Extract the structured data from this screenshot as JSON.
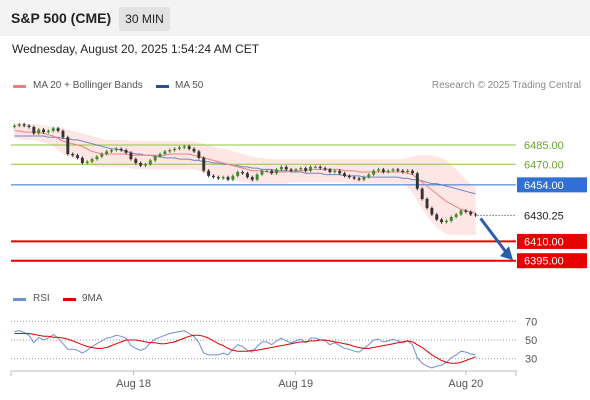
{
  "header": {
    "title": "S&P 500 (CME)",
    "timeframe": "30 MIN"
  },
  "timestamp": "Wednesday, August 20, 2025 1:54:24 AM CET",
  "legend": {
    "ma20": "MA 20 + Bollinger Bands",
    "ma50": "MA 50",
    "rsi": "RSI",
    "rsi_ma": "9MA"
  },
  "credit": "Research © 2025 Trading Central",
  "colors": {
    "resistance": "#8cc63f",
    "pivot": "#2f6fd6",
    "support": "#e60000",
    "bollinger_fill": "#fde3e1",
    "ma20": "#f08080",
    "ma50": "#4a6fb5",
    "candle_up": "#3d8a2e",
    "candle_down": "#333333",
    "arrow": "#2a5ea6",
    "rsi_line": "#6f8fd6",
    "rsi_ma": "#e00000"
  },
  "chart_data": [
    {
      "type": "candlestick",
      "x_ticks": [
        "Aug 18",
        "Aug 19",
        "Aug 20"
      ],
      "ylim": [
        6380,
        6520
      ],
      "levels": [
        {
          "label": "6485.00",
          "value": 6485,
          "kind": "resistance"
        },
        {
          "label": "6470.00",
          "value": 6470,
          "kind": "resistance"
        },
        {
          "label": "6454.00",
          "value": 6454,
          "kind": "pivot"
        },
        {
          "label": "6410.00",
          "value": 6410,
          "kind": "support"
        },
        {
          "label": "6395.00",
          "value": 6395,
          "kind": "support"
        }
      ],
      "last_price": {
        "label": "6430.25",
        "value": 6430.25
      },
      "close": [
        6500,
        6501,
        6500,
        6499,
        6494,
        6497,
        6495,
        6496,
        6498,
        6496,
        6491,
        6478,
        6477,
        6475,
        6471,
        6472,
        6474,
        6476,
        6478,
        6480,
        6481,
        6482,
        6481,
        6479,
        6474,
        6471,
        6469,
        6470,
        6473,
        6476,
        6478,
        6480,
        6481,
        6482,
        6483,
        6484,
        6482,
        6480,
        6475,
        6465,
        6461,
        6460,
        6459,
        6460,
        6458,
        6461,
        6464,
        6463,
        6460,
        6458,
        6462,
        6465,
        6465,
        6463,
        6466,
        6468,
        6466,
        6465,
        6466,
        6467,
        6465,
        6468,
        6468,
        6467,
        6466,
        6464,
        6465,
        6463,
        6461,
        6460,
        6459,
        6458,
        6460,
        6462,
        6465,
        6466,
        6464,
        6465,
        6466,
        6465,
        6464,
        6465,
        6463,
        6451,
        6443,
        6436,
        6431,
        6427,
        6425,
        6426,
        6429,
        6431,
        6434,
        6433,
        6431,
        6430.25
      ],
      "ma20": [
        6496,
        6496,
        6495,
        6495,
        6495,
        6495,
        6494,
        6493,
        6492,
        6490,
        6488,
        6487,
        6486,
        6485,
        6484,
        6482,
        6480,
        6479,
        6478,
        6478,
        6478,
        6478,
        6478,
        6478,
        6477,
        6477,
        6477,
        6477,
        6477,
        6477,
        6477,
        6477,
        6478,
        6478,
        6478,
        6478,
        6478,
        6477,
        6476,
        6475,
        6474,
        6473,
        6472,
        6471,
        6470,
        6469,
        6468,
        6467,
        6466,
        6465,
        6465,
        6465,
        6464,
        6464,
        6464,
        6464,
        6464,
        6465,
        6465,
        6465,
        6465,
        6466,
        6466,
        6466,
        6466,
        6466,
        6466,
        6466,
        6465,
        6465,
        6465,
        6464,
        6464,
        6464,
        6464,
        6464,
        6464,
        6464,
        6464,
        6464,
        6464,
        6463,
        6462,
        6459,
        6456,
        6453,
        6450,
        6447,
        6444,
        6441,
        6439,
        6437,
        6435,
        6434,
        6433,
        6432
      ],
      "bb_upper": [
        6502,
        6502,
        6502,
        6501,
        6501,
        6501,
        6500,
        6500,
        6499,
        6499,
        6498,
        6497,
        6496,
        6495,
        6494,
        6493,
        6492,
        6491,
        6490,
        6489,
        6489,
        6489,
        6489,
        6489,
        6488,
        6488,
        6488,
        6488,
        6488,
        6488,
        6488,
        6488,
        6488,
        6488,
        6488,
        6488,
        6488,
        6488,
        6487,
        6486,
        6485,
        6484,
        6483,
        6482,
        6481,
        6480,
        6479,
        6478,
        6477,
        6476,
        6475,
        6475,
        6474,
        6474,
        6474,
        6474,
        6474,
        6474,
        6474,
        6474,
        6474,
        6474,
        6474,
        6474,
        6474,
        6474,
        6474,
        6474,
        6474,
        6474,
        6474,
        6474,
        6474,
        6474,
        6474,
        6474,
        6474,
        6474,
        6474,
        6474,
        6474,
        6475,
        6476,
        6477,
        6477,
        6477,
        6477,
        6476,
        6475,
        6473,
        6470,
        6466,
        6462,
        6458,
        6455,
        6452
      ],
      "bb_lower": [
        6490,
        6490,
        6489,
        6489,
        6489,
        6488,
        6487,
        6486,
        6484,
        6481,
        6478,
        6476,
        6475,
        6474,
        6473,
        6471,
        6469,
        6468,
        6468,
        6468,
        6468,
        6468,
        6468,
        6468,
        6467,
        6466,
        6466,
        6466,
        6466,
        6466,
        6466,
        6466,
        6466,
        6466,
        6466,
        6466,
        6466,
        6466,
        6465,
        6463,
        6462,
        6461,
        6460,
        6459,
        6459,
        6458,
        6457,
        6456,
        6456,
        6455,
        6455,
        6455,
        6455,
        6455,
        6455,
        6455,
        6455,
        6456,
        6456,
        6456,
        6456,
        6456,
        6456,
        6456,
        6456,
        6456,
        6456,
        6456,
        6456,
        6455,
        6455,
        6455,
        6455,
        6455,
        6455,
        6455,
        6455,
        6455,
        6455,
        6455,
        6455,
        6452,
        6448,
        6441,
        6435,
        6430,
        6425,
        6421,
        6418,
        6416,
        6415,
        6415,
        6415,
        6415,
        6415,
        6415
      ],
      "ma50": [
        6492,
        6492,
        6492,
        6492,
        6492,
        6492,
        6492,
        6491,
        6491,
        6491,
        6490,
        6490,
        6489,
        6489,
        6488,
        6487,
        6486,
        6485,
        6484,
        6483,
        6482,
        6482,
        6481,
        6480,
        6479,
        6478,
        6478,
        6477,
        6477,
        6476,
        6476,
        6475,
        6475,
        6475,
        6474,
        6474,
        6474,
        6473,
        6473,
        6472,
        6472,
        6471,
        6471,
        6470,
        6470,
        6469,
        6469,
        6468,
        6468,
        6467,
        6467,
        6466,
        6466,
        6466,
        6465,
        6465,
        6465,
        6464,
        6464,
        6464,
        6463,
        6463,
        6463,
        6463,
        6462,
        6462,
        6462,
        6462,
        6461,
        6461,
        6461,
        6461,
        6460,
        6460,
        6460,
        6460,
        6460,
        6460,
        6460,
        6460,
        6459,
        6459,
        6458,
        6458,
        6457,
        6456,
        6455,
        6455,
        6454,
        6453,
        6452,
        6451,
        6450,
        6449,
        6448,
        6447
      ]
    },
    {
      "type": "line",
      "y_ticks": [
        70,
        50,
        30
      ],
      "ylim": [
        20,
        80
      ],
      "series": [
        {
          "name": "RSI",
          "values": [
            59,
            60,
            58,
            55,
            47,
            53,
            50,
            52,
            56,
            52,
            46,
            40,
            40,
            39,
            36,
            39,
            43,
            46,
            49,
            52,
            53,
            55,
            54,
            52,
            44,
            41,
            39,
            41,
            47,
            51,
            53,
            55,
            57,
            58,
            59,
            60,
            57,
            54,
            47,
            36,
            34,
            34,
            34,
            36,
            34,
            40,
            45,
            43,
            39,
            37,
            43,
            48,
            48,
            45,
            49,
            52,
            49,
            47,
            49,
            51,
            47,
            52,
            52,
            50,
            49,
            45,
            47,
            44,
            41,
            40,
            38,
            37,
            41,
            45,
            50,
            51,
            48,
            49,
            51,
            49,
            47,
            49,
            45,
            31,
            25,
            22,
            20,
            22,
            23,
            26,
            31,
            34,
            38,
            37,
            35,
            34
          ]
        },
        {
          "name": "9MA",
          "values": [
            57,
            57,
            57,
            57,
            56,
            55,
            54,
            54,
            53,
            53,
            52,
            51,
            49,
            47,
            45,
            43,
            42,
            41,
            41,
            42,
            44,
            46,
            48,
            50,
            50,
            50,
            49,
            48,
            47,
            47,
            46,
            46,
            47,
            48,
            50,
            52,
            54,
            55,
            55,
            54,
            52,
            49,
            46,
            44,
            41,
            39,
            38,
            38,
            38,
            39,
            39,
            40,
            41,
            42,
            43,
            44,
            45,
            46,
            47,
            48,
            48,
            49,
            49,
            50,
            50,
            49,
            48,
            47,
            46,
            45,
            43,
            42,
            41,
            41,
            42,
            43,
            44,
            45,
            46,
            47,
            48,
            49,
            48,
            45,
            42,
            38,
            34,
            31,
            28,
            26,
            25,
            25,
            26,
            28,
            30,
            32
          ]
        }
      ]
    }
  ]
}
